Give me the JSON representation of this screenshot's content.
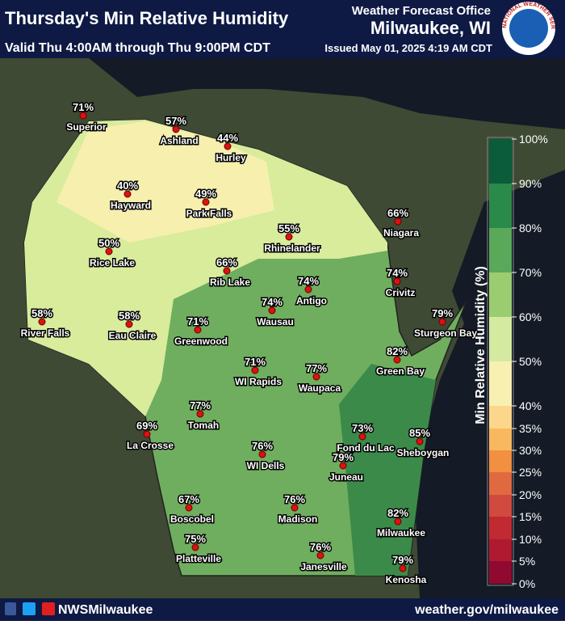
{
  "header": {
    "title": "Thursday's Min Relative Humidity",
    "office": "Weather Forecast Office",
    "office_name": "Milwaukee, WI",
    "valid": "Valid Thu 4:00AM through Thu 9:00PM CDT",
    "issued": "Issued May 01, 2025 4:19 AM CDT",
    "logo": "NATIONAL WEATHER SERVICE"
  },
  "cities": [
    {
      "name": "Superior",
      "humidity": "71%"
    },
    {
      "name": "Ashland",
      "humidity": "57%"
    },
    {
      "name": "Hurley",
      "humidity": "44%"
    },
    {
      "name": "Hayward",
      "humidity": "40%"
    },
    {
      "name": "Park Falls",
      "humidity": "49%"
    },
    {
      "name": "Rhinelander",
      "humidity": "55%"
    },
    {
      "name": "Niagara",
      "humidity": "66%"
    },
    {
      "name": "Rice Lake",
      "humidity": "50%"
    },
    {
      "name": "Rib Lake",
      "humidity": "66%"
    },
    {
      "name": "Antigo",
      "humidity": "74%"
    },
    {
      "name": "Crivitz",
      "humidity": "74%"
    },
    {
      "name": "River Falls",
      "humidity": "58%"
    },
    {
      "name": "Eau Claire",
      "humidity": "58%"
    },
    {
      "name": "Greenwood",
      "humidity": "71%"
    },
    {
      "name": "Wausau",
      "humidity": "74%"
    },
    {
      "name": "Sturgeon Bay",
      "humidity": "79%"
    },
    {
      "name": "Green Bay",
      "humidity": "82%"
    },
    {
      "name": "WI Rapids",
      "humidity": "71%"
    },
    {
      "name": "Waupaca",
      "humidity": "77%"
    },
    {
      "name": "Tomah",
      "humidity": "77%"
    },
    {
      "name": "La Crosse",
      "humidity": "69%"
    },
    {
      "name": "Fond du Lac",
      "humidity": "73%"
    },
    {
      "name": "Sheboygan",
      "humidity": "85%"
    },
    {
      "name": "WI Dells",
      "humidity": "76%"
    },
    {
      "name": "Juneau",
      "humidity": "79%"
    },
    {
      "name": "Boscobel",
      "humidity": "67%"
    },
    {
      "name": "Madison",
      "humidity": "76%"
    },
    {
      "name": "Milwaukee",
      "humidity": "82%"
    },
    {
      "name": "Platteville",
      "humidity": "75%"
    },
    {
      "name": "Janesville",
      "humidity": "76%"
    },
    {
      "name": "Kenosha",
      "humidity": "79%"
    }
  ],
  "legend": {
    "title": "Min Relative Humidity (%)",
    "labels": [
      "100%",
      "90%",
      "80%",
      "70%",
      "60%",
      "50%",
      "40%",
      "35%",
      "30%",
      "25%",
      "20%",
      "15%",
      "10%",
      "5%",
      "0%"
    ]
  },
  "footer": {
    "social": "NWSMilwaukee",
    "website": "weather.gov/milwaukee"
  }
}
